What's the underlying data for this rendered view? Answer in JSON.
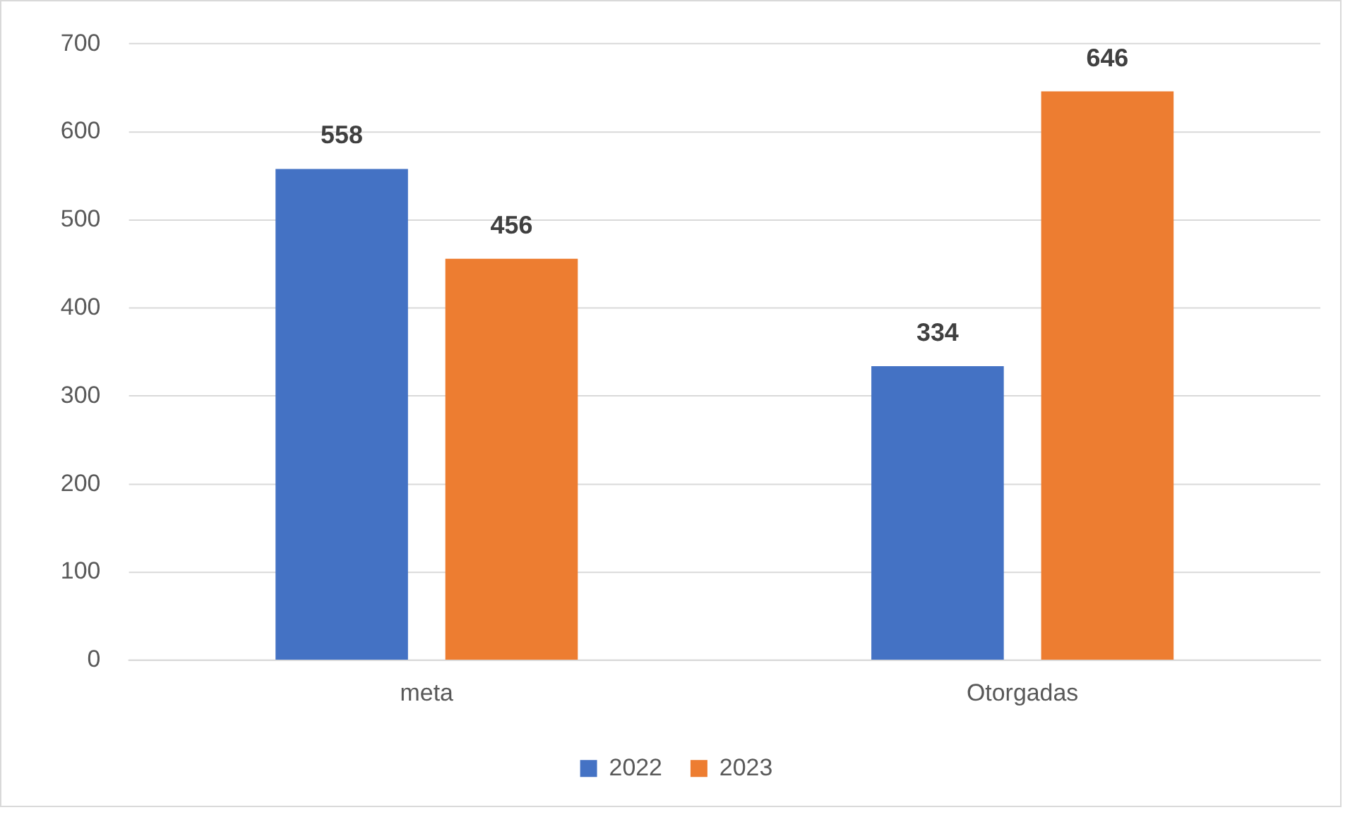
{
  "chart_data": {
    "type": "bar",
    "categories": [
      "meta",
      "Otorgadas"
    ],
    "series": [
      {
        "name": "2022",
        "color": "#4472c4",
        "values": [
          558,
          334
        ]
      },
      {
        "name": "2023",
        "color": "#ed7d31",
        "values": [
          456,
          646
        ]
      }
    ],
    "ylim": [
      0,
      700
    ],
    "yticks": [
      0,
      100,
      200,
      300,
      400,
      500,
      600,
      700
    ],
    "grid": "y",
    "legend": "bottom",
    "data_labels": true
  }
}
